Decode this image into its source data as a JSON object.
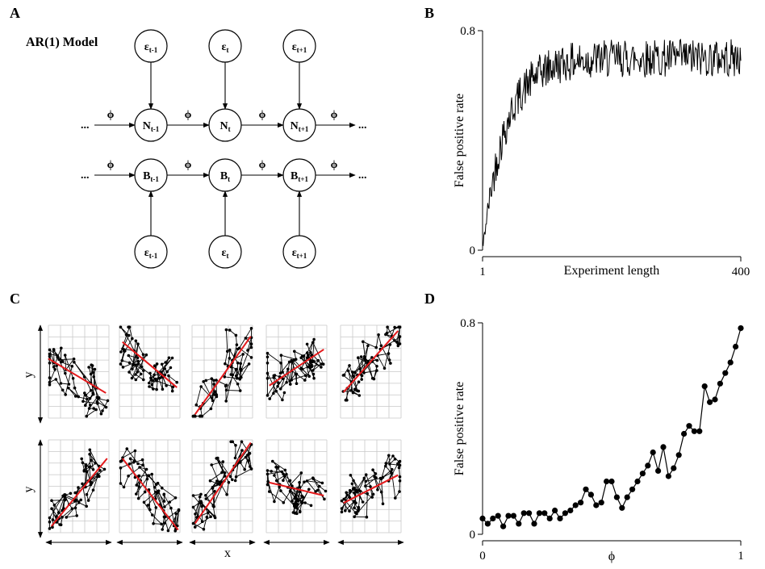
{
  "panels": {
    "a": "A",
    "b": "B",
    "c": "C",
    "d": "D"
  },
  "panel_a": {
    "title": "AR(1) Model",
    "phi": "ϕ",
    "ellipsis": "...",
    "noise_symbol": "ε",
    "n_symbol": "N",
    "b_symbol": "B",
    "subscripts": [
      "t-1",
      "t",
      "t+1"
    ]
  },
  "panel_c": {
    "xlabel": "x",
    "ylabel": "y",
    "rows": 2,
    "columns": 5,
    "fit_color": "#e41a1c"
  },
  "chart_data": [
    {
      "panel": "B",
      "type": "line",
      "xlabel": "Experiment length",
      "ylabel": "False positive rate",
      "xticks": [
        "1",
        "400"
      ],
      "yticks": [
        "0",
        "0.8"
      ],
      "xlim": [
        1,
        400
      ],
      "ylim": [
        0,
        0.8
      ],
      "color": "#000000",
      "trend": {
        "start": 0.0,
        "plateau": 0.7,
        "rate": 35,
        "noise": 0.07
      },
      "x": [
        1,
        10,
        20,
        30,
        40,
        50,
        60,
        80,
        100,
        150,
        200,
        250,
        300,
        350,
        400
      ],
      "y": [
        0.02,
        0.2,
        0.32,
        0.42,
        0.5,
        0.53,
        0.58,
        0.62,
        0.65,
        0.68,
        0.7,
        0.7,
        0.71,
        0.71,
        0.71
      ]
    },
    {
      "panel": "D",
      "type": "line",
      "xlabel": "ϕ",
      "ylabel": "False positive rate",
      "xticks": [
        "0",
        "1"
      ],
      "yticks": [
        "0",
        "0.8"
      ],
      "xlim": [
        0,
        1
      ],
      "ylim": [
        0,
        0.8
      ],
      "color": "#000000",
      "x": [
        0.0,
        0.02,
        0.04,
        0.06,
        0.08,
        0.1,
        0.12,
        0.14,
        0.16,
        0.18,
        0.2,
        0.22,
        0.24,
        0.26,
        0.28,
        0.3,
        0.32,
        0.34,
        0.36,
        0.38,
        0.4,
        0.42,
        0.44,
        0.46,
        0.48,
        0.5,
        0.52,
        0.54,
        0.56,
        0.58,
        0.6,
        0.62,
        0.64,
        0.66,
        0.68,
        0.7,
        0.72,
        0.74,
        0.76,
        0.78,
        0.8,
        0.82,
        0.84,
        0.86,
        0.88,
        0.9,
        0.92,
        0.94,
        0.96,
        0.98,
        1.0
      ],
      "y": [
        0.06,
        0.04,
        0.06,
        0.07,
        0.03,
        0.07,
        0.07,
        0.04,
        0.08,
        0.08,
        0.04,
        0.08,
        0.08,
        0.06,
        0.09,
        0.06,
        0.08,
        0.09,
        0.11,
        0.12,
        0.17,
        0.15,
        0.11,
        0.12,
        0.2,
        0.2,
        0.14,
        0.1,
        0.14,
        0.17,
        0.2,
        0.23,
        0.26,
        0.31,
        0.24,
        0.33,
        0.22,
        0.25,
        0.3,
        0.38,
        0.41,
        0.39,
        0.39,
        0.56,
        0.5,
        0.51,
        0.57,
        0.61,
        0.65,
        0.71,
        0.78
      ]
    }
  ]
}
